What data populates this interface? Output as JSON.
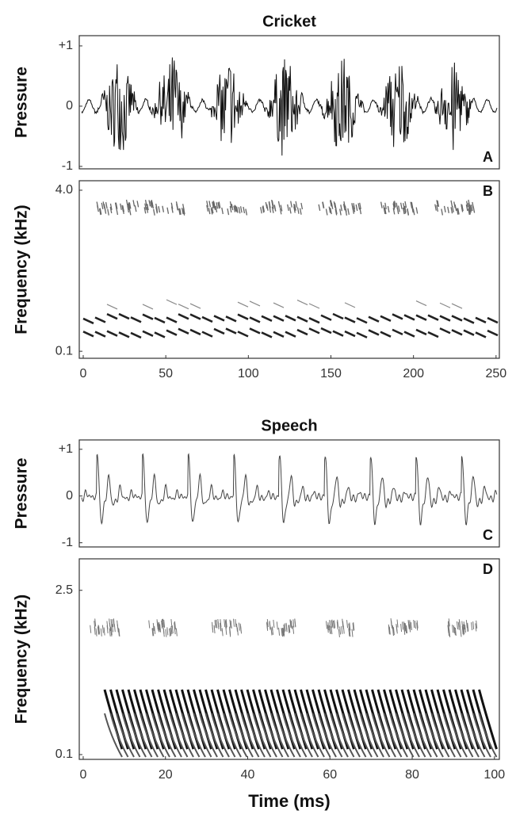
{
  "chart_data": [
    {
      "type": "waveform",
      "title": "Cricket",
      "ylabel": "Pressure",
      "panel_label": "A",
      "xlim": [
        -2.4,
        252
      ],
      "ylim": [
        -1.04,
        1.17
      ],
      "yticks": [
        {
          "value": 1,
          "label": "+1"
        },
        0,
        -1
      ]
    },
    {
      "type": "spectrogram",
      "ylabel": "Frequency (kHz)",
      "panel_label": "B",
      "xlim": [
        -2.4,
        252
      ],
      "ylim": [
        -0.07,
        4.23
      ],
      "yticks": [
        {
          "value": 4,
          "label": "4.0"
        },
        0.1
      ],
      "xticks": [
        0,
        50,
        100,
        150,
        200,
        250
      ]
    },
    {
      "type": "waveform",
      "title": "Speech",
      "ylabel": "Pressure",
      "panel_label": "C",
      "xlim": [
        -0.96,
        101.2
      ],
      "ylim": [
        -1.09,
        1.2
      ],
      "yticks": [
        {
          "value": 1,
          "label": "+1"
        },
        0,
        -1
      ]
    },
    {
      "type": "spectrogram",
      "ylabel": "Frequency (kHz)",
      "panel_label": "D",
      "xlim": [
        -0.96,
        101.2
      ],
      "ylim": [
        0.03,
        2.96
      ],
      "yticks": [
        2.5,
        0.1
      ],
      "xticks": [
        0,
        20,
        40,
        60,
        80,
        100
      ],
      "xlabel": "Time (ms)"
    }
  ]
}
